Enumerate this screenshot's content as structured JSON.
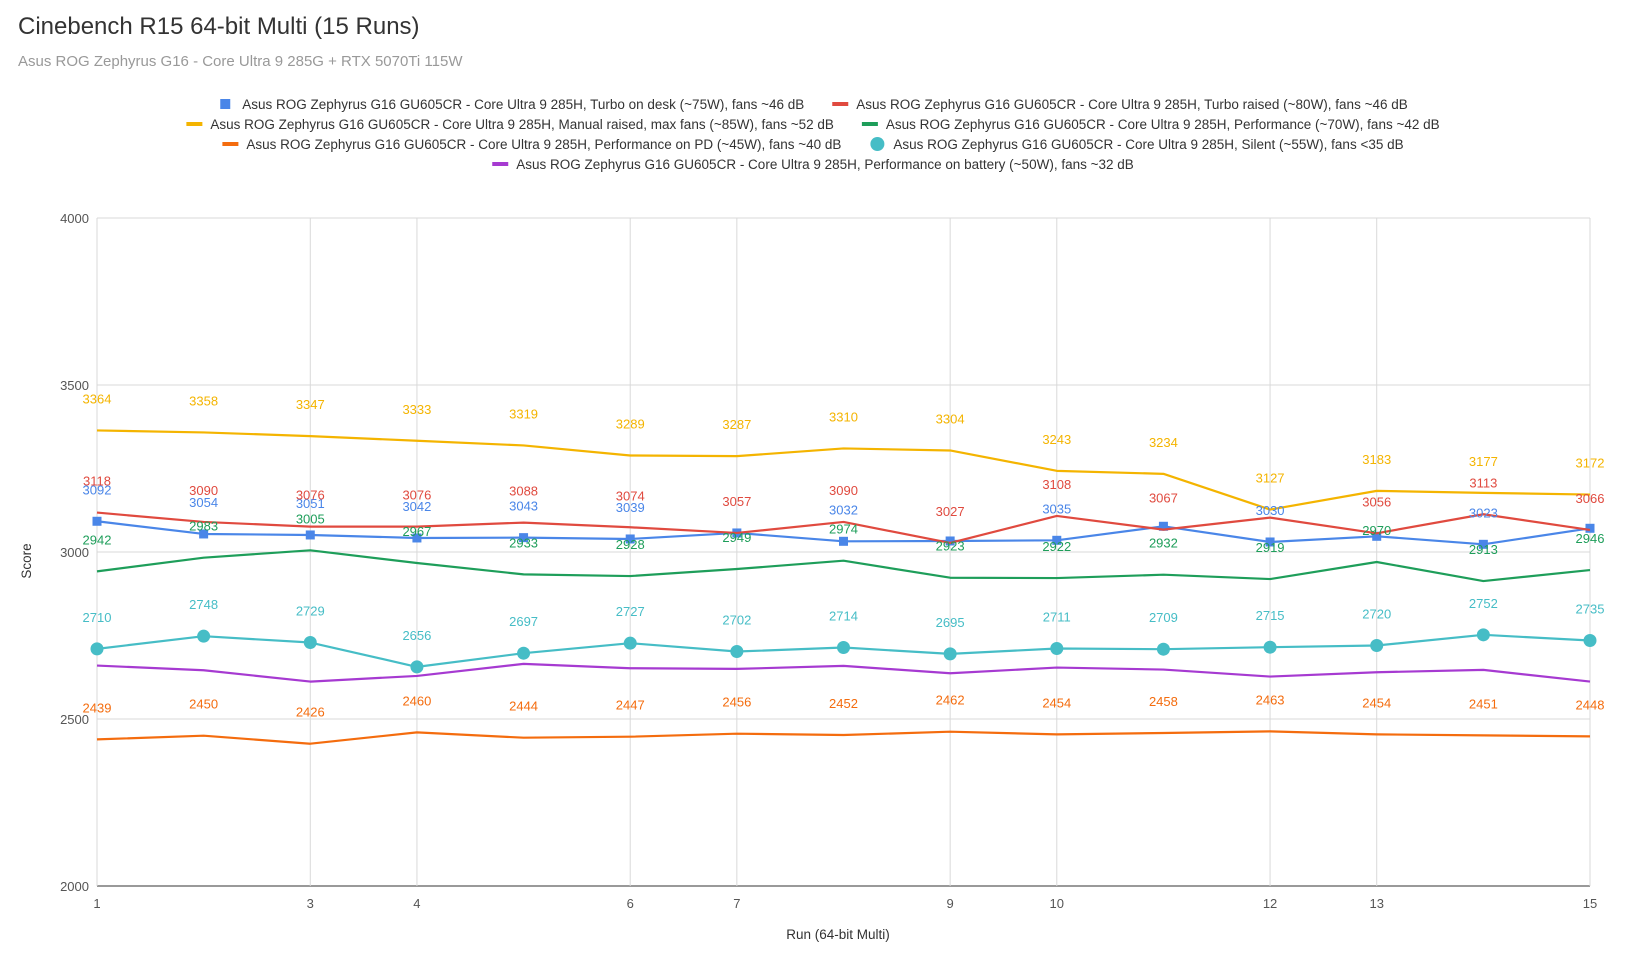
{
  "chart_data": {
    "type": "line",
    "title": "Cinebench R15 64-bit Multi (15 Runs)",
    "subtitle": "Asus ROG Zephyrus G16 - Core Ultra 9 285G + RTX 5070Ti 115W",
    "xlabel": "Run (64-bit Multi)",
    "ylabel": "Score",
    "xlim": [
      1,
      15
    ],
    "ylim": [
      2000,
      4000
    ],
    "x_ticks": [
      1,
      3,
      4,
      6,
      7,
      9,
      10,
      12,
      13,
      15
    ],
    "y_ticks": [
      2000,
      2500,
      3000,
      3500,
      4000
    ],
    "x": [
      1,
      2,
      3,
      4,
      5,
      6,
      7,
      8,
      9,
      10,
      11,
      12,
      13,
      14,
      15
    ],
    "legend_position": "top",
    "grid": true,
    "series": [
      {
        "name": "Asus ROG Zephyrus G16 GU605CR - Core Ultra 9 285H, Turbo on desk (~75W), fans ~46 dB",
        "color": "#4a86e8",
        "marker": "square",
        "values": [
          3092,
          3054,
          3051,
          3042,
          3043,
          3039,
          3057,
          3032,
          3033,
          3035,
          3077,
          3030,
          3047,
          3023,
          3071
        ],
        "labels": [
          "3092",
          "3054",
          "3051",
          "3042",
          "3043",
          "3039",
          "",
          "3032",
          "",
          "3035",
          "",
          "3030",
          "",
          "3023",
          ""
        ]
      },
      {
        "name": "Asus ROG Zephyrus G16 GU605CR - Core Ultra 9 285H, Turbo raised (~80W), fans ~46 dB",
        "color": "#e04a3f",
        "marker": "none",
        "values": [
          3118,
          3090,
          3076,
          3076,
          3088,
          3074,
          3057,
          3090,
          3027,
          3108,
          3067,
          3103,
          3056,
          3113,
          3066
        ],
        "labels": [
          "3118",
          "3090",
          "3076",
          "3076",
          "3088",
          "3074",
          "3057",
          "3090",
          "3027",
          "3108",
          "3067",
          "",
          "3056",
          "3113",
          "3066"
        ]
      },
      {
        "name": "Asus ROG Zephyrus G16 GU605CR - Core Ultra 9 285H, Manual raised, max fans (~85W), fans ~52 dB",
        "color": "#f4b400",
        "marker": "none",
        "values": [
          3364,
          3358,
          3347,
          3333,
          3319,
          3289,
          3287,
          3310,
          3304,
          3243,
          3234,
          3127,
          3183,
          3177,
          3172
        ],
        "labels": [
          "3364",
          "3358",
          "3347",
          "3333",
          "3319",
          "3289",
          "3287",
          "3310",
          "3304",
          "3243",
          "3234",
          "3127",
          "3183",
          "3177",
          "3172"
        ]
      },
      {
        "name": "Asus ROG Zephyrus G16 GU605CR - Core Ultra 9 285H, Performance (~70W), fans ~42 dB",
        "color": "#1e9e5a",
        "marker": "none",
        "values": [
          2942,
          2983,
          3005,
          2967,
          2933,
          2928,
          2949,
          2974,
          2923,
          2922,
          2932,
          2919,
          2970,
          2913,
          2946
        ],
        "labels": [
          "2942",
          "2983",
          "3005",
          "2967",
          "2933",
          "2928",
          "2949",
          "2974",
          "2923",
          "2922",
          "2932",
          "2919",
          "2970",
          "2913",
          "2946"
        ]
      },
      {
        "name": "Asus ROG Zephyrus G16 GU605CR - Core Ultra 9 285H, Performance on PD (~45W), fans ~40 dB",
        "color": "#f46c0e",
        "marker": "none",
        "values": [
          2439,
          2450,
          2426,
          2460,
          2444,
          2447,
          2456,
          2452,
          2462,
          2454,
          2458,
          2463,
          2454,
          2451,
          2448
        ],
        "labels": [
          "2439",
          "2450",
          "2426",
          "2460",
          "2444",
          "2447",
          "2456",
          "2452",
          "2462",
          "2454",
          "2458",
          "2463",
          "2454",
          "2451",
          "2448"
        ]
      },
      {
        "name": "Asus ROG Zephyrus G16 GU605CR - Core Ultra 9 285H, Silent (~55W), fans <35 dB",
        "color": "#46bdc6",
        "marker": "circle",
        "values": [
          2710,
          2748,
          2729,
          2656,
          2697,
          2727,
          2702,
          2714,
          2695,
          2711,
          2709,
          2715,
          2720,
          2752,
          2735
        ],
        "labels": [
          "2710",
          "2748",
          "2729",
          "2656",
          "2697",
          "2727",
          "2702",
          "2714",
          "2695",
          "2711",
          "2709",
          "2715",
          "2720",
          "2752",
          "2735"
        ]
      },
      {
        "name": "Asus ROG Zephyrus G16 GU605CR - Core Ultra 9 285H, Performance on battery (~50W), fans ~32 dB",
        "color": "#a63ad1",
        "marker": "none",
        "values": [
          2660,
          2646,
          2612,
          2629,
          2665,
          2652,
          2650,
          2659,
          2637,
          2654,
          2648,
          2627,
          2640,
          2647,
          2612
        ],
        "labels": []
      }
    ]
  }
}
